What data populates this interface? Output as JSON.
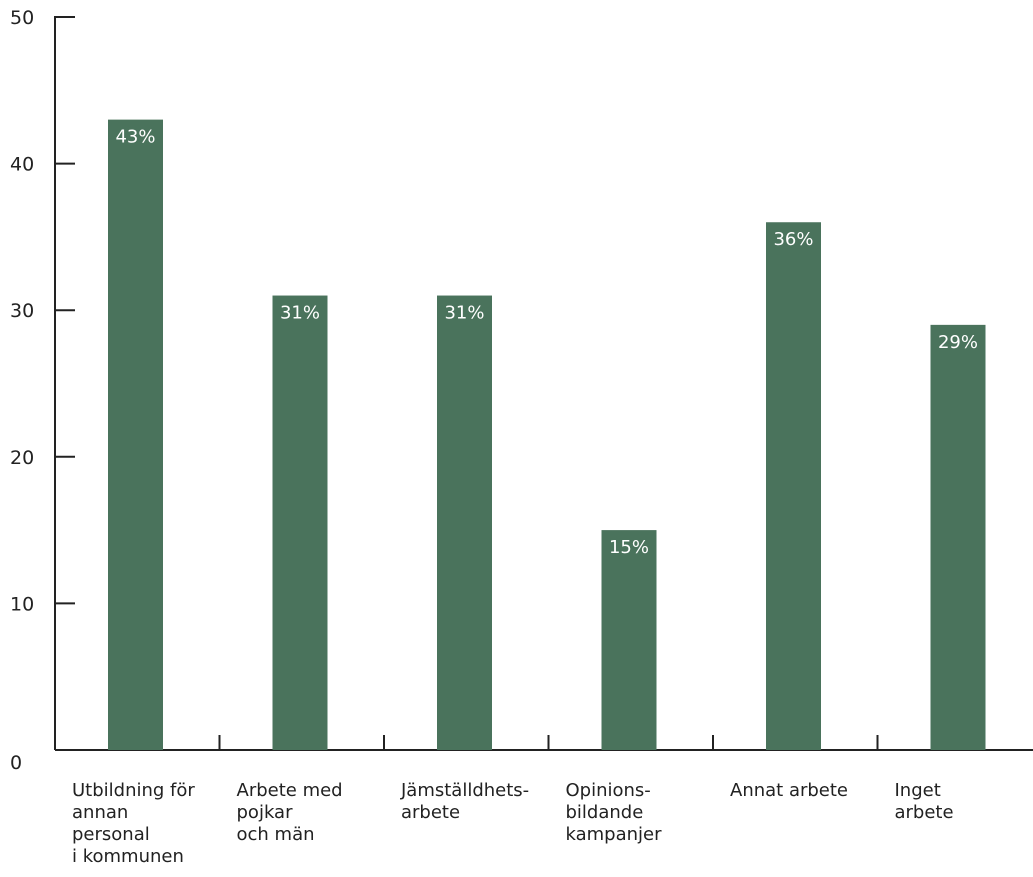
{
  "chart_data": {
    "type": "bar",
    "title": "",
    "xlabel": "",
    "ylabel": "",
    "ylim": [
      0,
      50
    ],
    "yticks": [
      0,
      10,
      20,
      30,
      40,
      50
    ],
    "grid": false,
    "categories": [
      [
        "Utbildning för",
        "annan",
        "personal",
        "i kommunen"
      ],
      [
        "Arbete med",
        "pojkar",
        "och män"
      ],
      [
        "Jämställdhets-",
        "arbete"
      ],
      [
        "Opinions-",
        "bildande",
        "kampanjer"
      ],
      [
        "Annat arbete"
      ],
      [
        "Inget",
        "arbete"
      ]
    ],
    "values": [
      43,
      31,
      31,
      15,
      36,
      29
    ],
    "data_labels": [
      "43%",
      "31%",
      "31%",
      "15%",
      "36%",
      "29%"
    ],
    "bar_color": "#4a735c",
    "axis_color": "#222222",
    "label_color": "#ffffff"
  }
}
